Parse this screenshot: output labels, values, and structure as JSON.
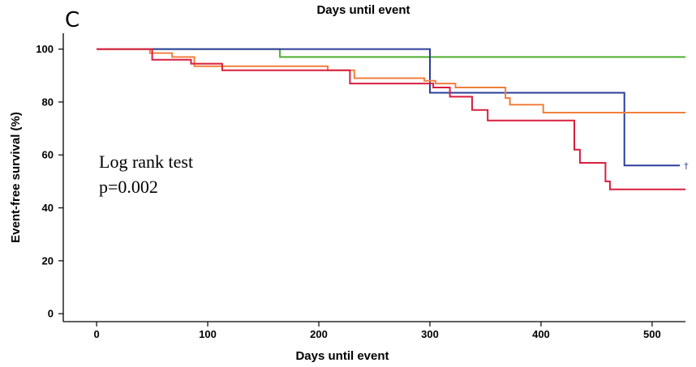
{
  "panel_label": "C",
  "top_title": "Days until event",
  "chart_data": {
    "type": "line",
    "step": true,
    "xlabel": "Days until event",
    "ylabel": "Event-free survival (%)",
    "xlim": [
      -30,
      530
    ],
    "ylim": [
      -3,
      106
    ],
    "xticks": [
      0,
      100,
      200,
      300,
      400,
      500
    ],
    "yticks": [
      0,
      20,
      40,
      60,
      80,
      100
    ],
    "grid": false,
    "legend": "none",
    "annotations": [
      "Log rank test",
      "p=0.002"
    ],
    "censor_mark": "†",
    "series": [
      {
        "color": "#4daf2e",
        "x": [
          0,
          165,
          165,
          530
        ],
        "y": [
          100,
          100,
          97,
          97
        ]
      },
      {
        "color": "#2b3d9a",
        "x": [
          0,
          300,
          300,
          475,
          475,
          525
        ],
        "y": [
          100,
          100,
          83.5,
          83.5,
          56,
          56
        ]
      },
      {
        "color": "#f07f3c",
        "x": [
          0,
          48,
          48,
          68,
          68,
          88,
          88,
          208,
          208,
          232,
          232,
          295,
          295,
          305,
          305,
          323,
          323,
          368,
          368,
          372,
          372,
          402,
          402,
          530
        ],
        "y": [
          100,
          100,
          98.5,
          98.5,
          97,
          97,
          93.5,
          93.5,
          92,
          92,
          89,
          89,
          88,
          88,
          87,
          87,
          85.5,
          85.5,
          81.5,
          81.5,
          79,
          79,
          76,
          76
        ]
      },
      {
        "color": "#d81e3f",
        "x": [
          0,
          50,
          50,
          85,
          85,
          113,
          113,
          228,
          228,
          303,
          303,
          318,
          318,
          338,
          338,
          352,
          352,
          430,
          430,
          435,
          435,
          458,
          458,
          462,
          462,
          530
        ],
        "y": [
          100,
          100,
          96,
          96,
          94.5,
          94.5,
          92,
          92,
          87,
          87,
          85.5,
          85.5,
          82,
          82,
          77,
          77,
          73,
          73,
          62,
          62,
          57,
          57,
          50,
          50,
          47,
          47
        ]
      }
    ]
  }
}
